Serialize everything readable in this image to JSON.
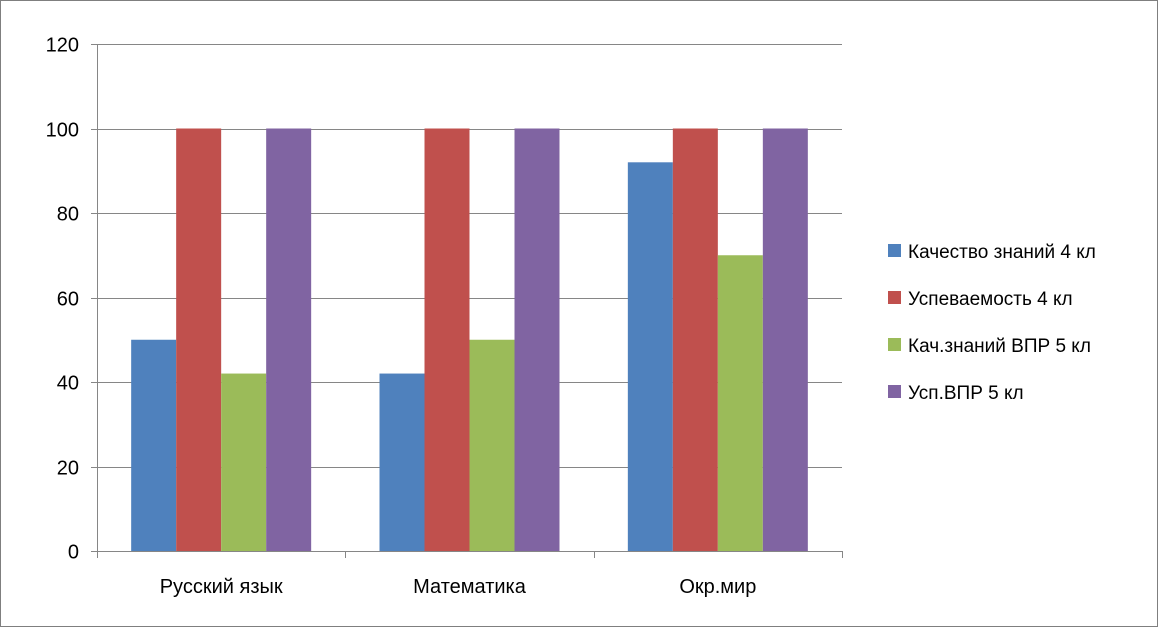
{
  "chart_data": {
    "type": "bar",
    "categories": [
      "Русский язык",
      "Математика",
      "Окр.мир"
    ],
    "series": [
      {
        "name": "Качество знаний 4 кл",
        "values": [
          50,
          42,
          92
        ],
        "color": "#4f81bd"
      },
      {
        "name": "Успеваемость 4 кл",
        "values": [
          100,
          100,
          100
        ],
        "color": "#c0504d"
      },
      {
        "name": "Кач.знаний ВПР 5 кл",
        "values": [
          42,
          50,
          70
        ],
        "color": "#9bbb59"
      },
      {
        "name": "Усп.ВПР 5 кл",
        "values": [
          100,
          100,
          100
        ],
        "color": "#8064a2"
      }
    ],
    "yticks": [
      "0",
      "20",
      "40",
      "60",
      "80",
      "100",
      "120"
    ],
    "ylim": [
      0,
      120
    ],
    "grid": true,
    "legend": "right",
    "gridline_color": "#868686"
  }
}
